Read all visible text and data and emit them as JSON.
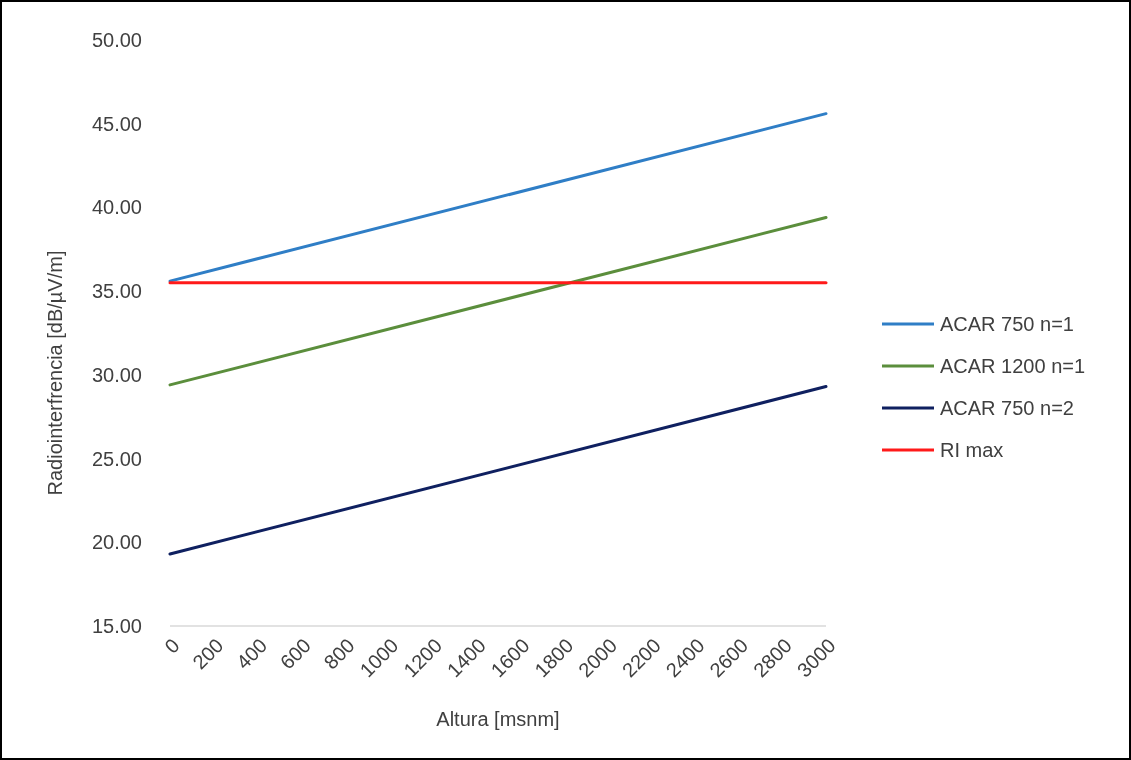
{
  "chart_data": {
    "type": "line",
    "xlabel": "Altura [msnm]",
    "ylabel": "Radiointerfrencia [dB/µV/m]",
    "xlim": [
      0,
      3000
    ],
    "xticks": [
      0,
      200,
      400,
      600,
      800,
      1000,
      1200,
      1400,
      1600,
      1800,
      2000,
      2200,
      2400,
      2600,
      2800,
      3000
    ],
    "ylim": [
      15,
      50
    ],
    "yticks": [
      {
        "value": 15,
        "label": "15.00"
      },
      {
        "value": 20,
        "label": "20.00"
      },
      {
        "value": 25,
        "label": "25.00"
      },
      {
        "value": 30,
        "label": "30.00"
      },
      {
        "value": 35,
        "label": "35.00"
      },
      {
        "value": 40,
        "label": "40.00"
      },
      {
        "value": 45,
        "label": "45.00"
      },
      {
        "value": 50,
        "label": "50.00"
      }
    ],
    "x": [
      0,
      3000
    ],
    "grid": false,
    "legend": "right",
    "marker": "none",
    "line_style": "solid",
    "series": [
      {
        "name": "ACAR 750 n=1",
        "color": "#2f7ec6",
        "values": [
          35.6,
          45.6
        ]
      },
      {
        "name": "ACAR 1200 n=1",
        "color": "#5b8e3c",
        "values": [
          29.4,
          39.4
        ]
      },
      {
        "name": "ACAR 750 n=2",
        "color": "#0f2060",
        "values": [
          19.3,
          29.3
        ]
      },
      {
        "name": "RI max",
        "color": "#ff1a1a",
        "values": [
          35.5,
          35.5
        ]
      }
    ]
  }
}
